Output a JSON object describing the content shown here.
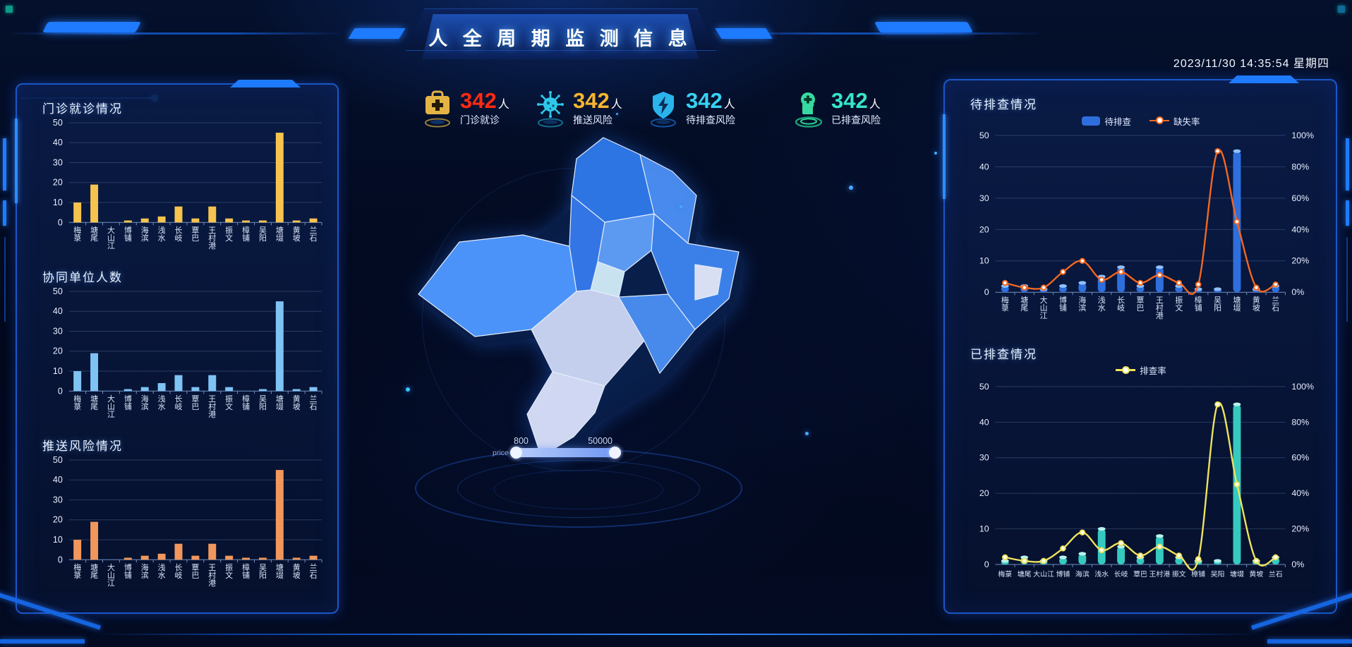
{
  "header": {
    "title": "人 全 周 期 监 测 信 息",
    "datetime": "2023/11/30 14:35:54 星期四"
  },
  "stats": [
    {
      "icon": "medkit-icon",
      "value": "342",
      "unit": "人",
      "label": "门诊就诊",
      "value_color": "#ff2a12"
    },
    {
      "icon": "virus-icon",
      "value": "342",
      "unit": "人",
      "label": "推送风险",
      "value_color": "#f6b52e"
    },
    {
      "icon": "shield-bolt-icon",
      "value": "342",
      "unit": "人",
      "label": "待排查风险",
      "value_color": "#38d2f2"
    },
    {
      "icon": "head-plus-icon",
      "value": "342",
      "unit": "人",
      "label": "已排查风险",
      "value_color": "#36e6c8"
    }
  ],
  "map": {
    "district_colors": [
      "#2e78e8",
      "#4b8ef2",
      "#3d84ee",
      "#dfe6f8",
      "#5f9ff6",
      "#cfeaf4",
      "#4e97ff",
      "#3579ea",
      "#cbd5f3",
      "#4a8ef0",
      "#d7def7"
    ],
    "shadow_color": "#081c44",
    "outline_color": "#eaf2ff"
  },
  "slider": {
    "label": "price",
    "min_value": "800",
    "max_value": "50000"
  },
  "chart_data": [
    {
      "id": "outpatient-bar",
      "type": "bar",
      "title": "门诊就诊情况",
      "categories": [
        "梅菉",
        "塘尾",
        "大山江",
        "博铺",
        "海滨",
        "浅水",
        "长岐",
        "覃巴",
        "王村港",
        "振文",
        "樟铺",
        "吴阳",
        "塘㙍",
        "黄坡",
        "兰石"
      ],
      "values": [
        10,
        19,
        0,
        1,
        2,
        3,
        8,
        2,
        8,
        2,
        1,
        1,
        45,
        1,
        2
      ],
      "bar_color": "#f6c44e",
      "ylim": [
        0,
        50
      ],
      "yticks": [
        0,
        10,
        20,
        30,
        40,
        50
      ],
      "grid": true
    },
    {
      "id": "cooperative-bar",
      "type": "bar",
      "title": "协同单位人数",
      "categories": [
        "梅菉",
        "塘尾",
        "大山江",
        "博铺",
        "海滨",
        "浅水",
        "长岐",
        "覃巴",
        "王村港",
        "振文",
        "樟铺",
        "吴阳",
        "塘㙍",
        "黄坡",
        "兰石"
      ],
      "values": [
        10,
        19,
        0,
        1,
        2,
        4,
        8,
        2,
        8,
        2,
        0,
        1,
        45,
        1,
        2
      ],
      "bar_color": "#7fc3f4",
      "ylim": [
        0,
        50
      ],
      "yticks": [
        0,
        10,
        20,
        30,
        40,
        50
      ],
      "grid": true
    },
    {
      "id": "push-risk-bar",
      "type": "bar",
      "title": "推送风险情况",
      "categories": [
        "梅菉",
        "塘尾",
        "大山江",
        "博铺",
        "海滨",
        "浅水",
        "长岐",
        "覃巴",
        "王村港",
        "振文",
        "樟铺",
        "吴阳",
        "塘㙍",
        "黄坡",
        "兰石"
      ],
      "values": [
        10,
        19,
        0,
        1,
        2,
        3,
        8,
        2,
        8,
        2,
        1,
        1,
        45,
        1,
        2
      ],
      "bar_color": "#f2975c",
      "ylim": [
        0,
        50
      ],
      "yticks": [
        0,
        10,
        20,
        30,
        40,
        50
      ],
      "grid": true
    },
    {
      "id": "pending-combo",
      "type": "bar-line",
      "title": "待排查情况",
      "categories": [
        "梅菉",
        "塘尾",
        "大山江",
        "博铺",
        "海滨",
        "浅水",
        "长岐",
        "覃巴",
        "王村港",
        "振文",
        "樟铺",
        "吴阳",
        "塘㙍",
        "黄坡",
        "兰石"
      ],
      "series": [
        {
          "name": "待排查",
          "type": "bar",
          "values": [
            2,
            2,
            1,
            2,
            3,
            5,
            8,
            2,
            8,
            2,
            1,
            1,
            45,
            1,
            2
          ],
          "color": "#2e6fdd",
          "cap_color": "#8fc0ff"
        },
        {
          "name": "缺失率",
          "type": "line",
          "unit": "%",
          "values": [
            6,
            3,
            3,
            13,
            20,
            8,
            13,
            6,
            11,
            6,
            5,
            90,
            45,
            3,
            5
          ],
          "color": "#f4671f"
        }
      ],
      "legend": [
        "待排查",
        "缺失率"
      ],
      "ylim_left": [
        0,
        50
      ],
      "yticks": [
        0,
        10,
        20,
        30,
        40,
        50
      ],
      "ylim_right": [
        0,
        100
      ],
      "right_ticks": [
        "0%",
        "20%",
        "40%",
        "60%",
        "80%",
        "100%"
      ],
      "grid": true
    },
    {
      "id": "reviewed-combo",
      "type": "bar-line",
      "title": "已排查情况",
      "categories": [
        "梅菉",
        "塘尾",
        "大山江",
        "博铺",
        "海滨",
        "浅水",
        "长岐",
        "覃巴",
        "王村港",
        "振文",
        "樟铺",
        "吴阳",
        "塘㙍",
        "黄坡",
        "兰石"
      ],
      "series": [
        {
          "name": "已排查",
          "type": "bar",
          "values": [
            1,
            2,
            1,
            2,
            3,
            10,
            5,
            2,
            8,
            2,
            1,
            1,
            45,
            1,
            2
          ],
          "color": "#35c9bf",
          "cap_color": "#b8f2ec",
          "in_legend": false
        },
        {
          "name": "排查率",
          "type": "line",
          "unit": "%",
          "values": [
            4,
            2,
            2,
            9,
            18,
            8,
            12,
            5,
            10,
            5,
            3,
            90,
            45,
            2,
            4
          ],
          "color": "#efe35d"
        }
      ],
      "legend": [
        "排查率"
      ],
      "ylim_left": [
        0,
        50
      ],
      "yticks": [
        0,
        10,
        20,
        30,
        40,
        50
      ],
      "ylim_right": [
        0,
        100
      ],
      "right_ticks": [
        "0%",
        "20%",
        "40%",
        "60%",
        "80%",
        "100%"
      ],
      "grid": true
    }
  ]
}
